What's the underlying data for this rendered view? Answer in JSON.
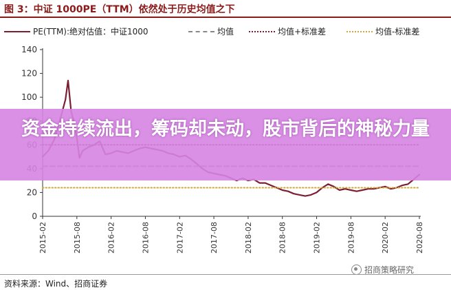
{
  "figure_title": "图 3：中证 1000PE（TTM）依然处于历史均值之下",
  "banner_text": "资金持续流出，筹码却未动，股市背后的神秘力量",
  "source_note": "资料来源：Wind、招商证券",
  "watermark": "招商策略研究",
  "colors": {
    "pe": "#7b1e32",
    "mean": "#888888",
    "plus_std": "#7b1e32",
    "minus_std": "#d4a637",
    "title": "#8b1a1a",
    "banner": "#d684e2"
  },
  "chart_data": {
    "type": "line",
    "title": "",
    "xlabel": "",
    "ylabel": "",
    "ylim": [
      0,
      140
    ],
    "yticks": [
      0,
      20,
      40,
      60,
      80,
      100,
      120,
      140
    ],
    "x_ticks": [
      "2015-02",
      "2015-08",
      "2016-02",
      "2016-08",
      "2017-02",
      "2017-08",
      "2018-02",
      "2018-08",
      "2019-02",
      "2019-08",
      "2020-02",
      "2020-08"
    ],
    "x_range": [
      "2015-02",
      "2020-08"
    ],
    "legend_position": "top",
    "grid": false,
    "series": [
      {
        "name": "PE(TTM):绝对估值：中证1000",
        "style": "solid",
        "x": [
          "2015-02",
          "2015-03",
          "2015-04",
          "2015-05",
          "2015-06",
          "2015-06-15",
          "2015-07",
          "2015-07-15",
          "2015-08",
          "2015-08-15",
          "2015-09",
          "2015-10",
          "2015-11",
          "2015-12",
          "2016-01",
          "2016-02",
          "2016-03",
          "2016-04",
          "2016-05",
          "2016-06",
          "2016-07",
          "2016-08",
          "2016-09",
          "2016-10",
          "2016-11",
          "2016-12",
          "2017-01",
          "2017-02",
          "2017-03",
          "2017-04",
          "2017-05",
          "2017-06",
          "2017-07",
          "2017-08",
          "2017-09",
          "2017-10",
          "2017-11",
          "2017-12",
          "2018-01",
          "2018-02",
          "2018-03",
          "2018-04",
          "2018-05",
          "2018-06",
          "2018-07",
          "2018-08",
          "2018-09",
          "2018-10",
          "2018-11",
          "2018-12",
          "2019-01",
          "2019-02",
          "2019-03",
          "2019-04",
          "2019-05",
          "2019-06",
          "2019-07",
          "2019-08",
          "2019-09",
          "2019-10",
          "2019-11",
          "2019-12",
          "2020-01",
          "2020-02",
          "2020-03",
          "2020-04",
          "2020-05",
          "2020-06",
          "2020-07",
          "2020-08"
        ],
        "values": [
          50,
          55,
          64,
          80,
          98,
          114,
          88,
          80,
          66,
          49,
          55,
          58,
          60,
          63,
          52,
          53,
          55,
          54,
          53,
          55,
          57,
          58,
          57,
          56,
          55,
          53,
          52,
          50,
          51,
          48,
          44,
          40,
          37,
          36,
          35,
          34,
          32,
          30,
          32,
          30,
          31,
          28,
          28,
          26,
          24,
          22,
          21,
          19,
          18,
          17,
          18,
          20,
          24,
          27,
          25,
          22,
          23,
          22,
          21,
          22,
          23,
          23,
          24,
          25,
          23,
          24,
          26,
          27,
          31,
          35
        ]
      },
      {
        "name": "均值",
        "style": "dashed",
        "x": [
          "2015-02",
          "2020-08"
        ],
        "values": [
          42,
          42
        ]
      },
      {
        "name": "均值+标准差",
        "style": "dotted",
        "x": [
          "2015-02",
          "2020-08"
        ],
        "values": [
          60,
          60
        ]
      },
      {
        "name": "均值-标准差",
        "style": "dotted",
        "x": [
          "2015-02",
          "2020-08"
        ],
        "values": [
          24,
          24
        ]
      }
    ]
  }
}
